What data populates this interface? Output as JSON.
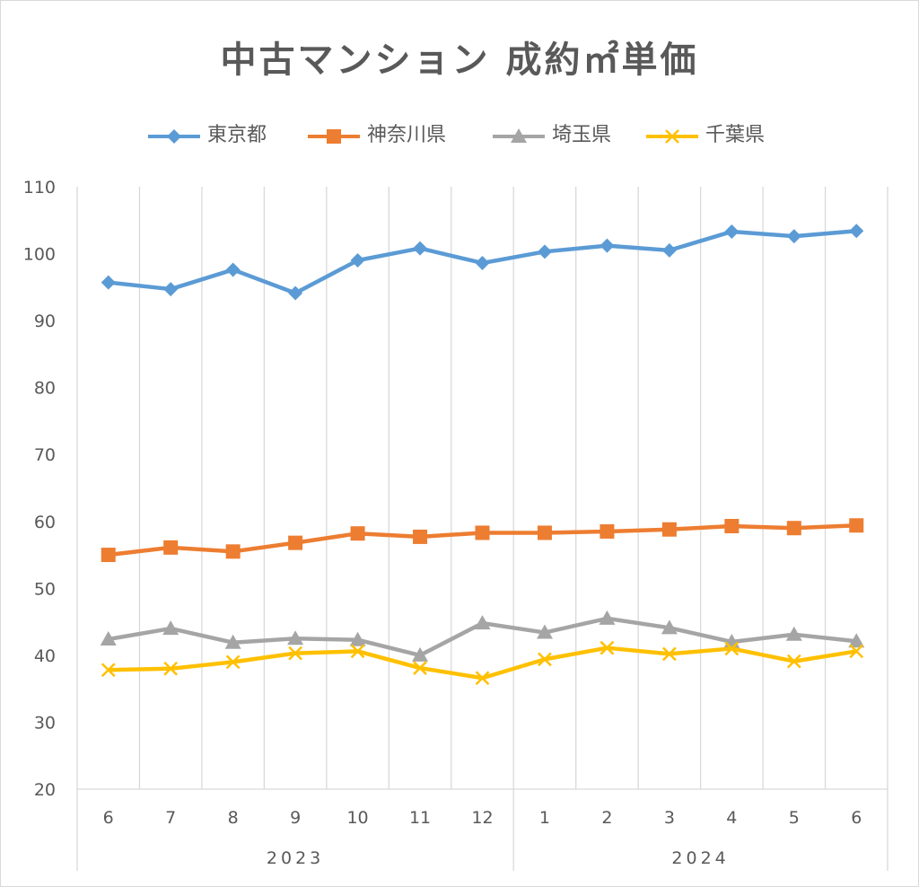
{
  "chart_data": {
    "type": "line",
    "title": "中古マンション 成約㎡単価",
    "xlabel": "",
    "ylabel": "",
    "ylim": [
      20,
      110
    ],
    "yticks": [
      20,
      30,
      40,
      50,
      60,
      70,
      80,
      90,
      100,
      110
    ],
    "grid": "vertical",
    "legend_position": "top",
    "categories": [
      "6",
      "7",
      "8",
      "9",
      "10",
      "11",
      "12",
      "1",
      "2",
      "3",
      "4",
      "5",
      "6"
    ],
    "year_groups": [
      {
        "label": "2023",
        "count": 7
      },
      {
        "label": "2024",
        "count": 6
      }
    ],
    "series": [
      {
        "name": "東京都",
        "color": "#5b9bd5",
        "marker": "diamond",
        "values": [
          95.7,
          94.7,
          97.6,
          94.1,
          99.0,
          100.8,
          98.6,
          100.3,
          101.2,
          100.5,
          103.3,
          102.6,
          103.4
        ]
      },
      {
        "name": "神奈川県",
        "color": "#ed7d31",
        "marker": "square",
        "values": [
          55.0,
          56.1,
          55.5,
          56.8,
          58.2,
          57.7,
          58.3,
          58.3,
          58.5,
          58.8,
          59.3,
          59.0,
          59.4
        ]
      },
      {
        "name": "埼玉県",
        "color": "#a5a5a5",
        "marker": "triangle",
        "values": [
          42.4,
          44.0,
          41.9,
          42.5,
          42.3,
          40.0,
          44.8,
          43.4,
          45.5,
          44.1,
          42.0,
          43.1,
          42.1
        ]
      },
      {
        "name": "千葉県",
        "color": "#ffc000",
        "marker": "x",
        "values": [
          37.8,
          38.0,
          39.0,
          40.3,
          40.6,
          38.1,
          36.6,
          39.4,
          41.1,
          40.2,
          41.0,
          39.1,
          40.6
        ]
      }
    ]
  }
}
